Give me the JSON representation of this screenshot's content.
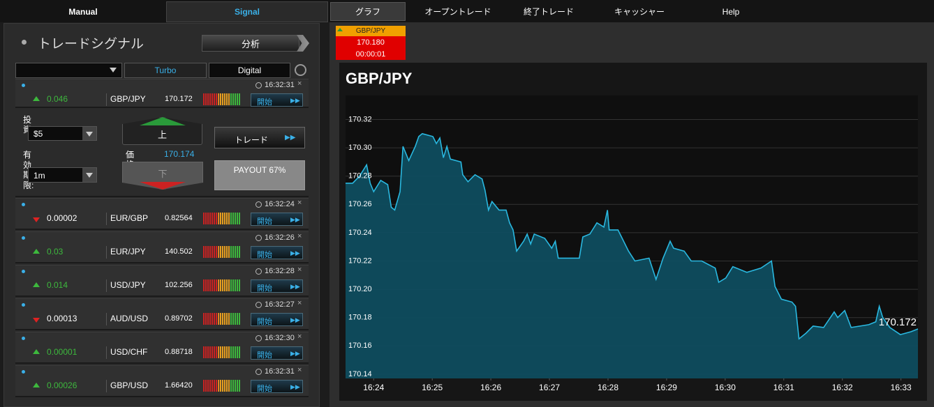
{
  "nav": {
    "left_tabs": [
      "Manual",
      "Signal"
    ],
    "right_tabs": [
      "グラフ",
      "オープントレード",
      "終了トレード",
      "キャッシャー",
      "Help"
    ]
  },
  "signal_panel": {
    "title": "トレードシグナル",
    "analyze_button": "分析",
    "filters": [
      "Turbo",
      "Digital"
    ],
    "signals": [
      {
        "time": "16:32:31",
        "direction": "up",
        "change": "0.046",
        "pair": "GBP/JPY",
        "price": "170.172",
        "button": "開始"
      },
      {
        "time": "16:32:24",
        "direction": "down",
        "change": "0.00002",
        "pair": "EUR/GBP",
        "price": "0.82564",
        "button": "開始"
      },
      {
        "time": "16:32:26",
        "direction": "up",
        "change": "0.03",
        "pair": "EUR/JPY",
        "price": "140.502",
        "button": "開始"
      },
      {
        "time": "16:32:28",
        "direction": "up",
        "change": "0.014",
        "pair": "USD/JPY",
        "price": "102.256",
        "button": "開始"
      },
      {
        "time": "16:32:27",
        "direction": "down",
        "change": "0.00013",
        "pair": "AUD/USD",
        "price": "0.89702",
        "button": "開始"
      },
      {
        "time": "16:32:30",
        "direction": "up",
        "change": "0.00001",
        "pair": "USD/CHF",
        "price": "0.88718",
        "button": "開始"
      },
      {
        "time": "16:32:31",
        "direction": "up",
        "change": "0.00026",
        "pair": "GBP/USD",
        "price": "1.66420",
        "button": "開始"
      }
    ],
    "ticket": {
      "investment_label": "投資:",
      "investment": "$5",
      "expiry_label": "有効期限:",
      "expiry": "1m",
      "call": "上",
      "put": "下",
      "price_label": "価格",
      "price": "170.174",
      "trade_button": "トレード",
      "payout": "PAYOUT 67%"
    }
  },
  "mini_ticket": {
    "pair": "GBP/JPY",
    "price": "170.180",
    "countdown": "00:00:01"
  },
  "chart_data": {
    "type": "area",
    "title": "GBP/JPY",
    "color": "#2ab8e0",
    "annotation": "170.172",
    "x": [
      983.52,
      983.64,
      983.76,
      983.88,
      983.94,
      984.0,
      984.12,
      984.24,
      984.3,
      984.36,
      984.45,
      984.5,
      984.6,
      984.71,
      984.77,
      984.83,
      985.01,
      985.07,
      985.13,
      985.19,
      985.25,
      985.31,
      985.49,
      985.52,
      985.61,
      985.73,
      985.85,
      985.9,
      985.96,
      986.02,
      986.14,
      986.26,
      986.32,
      986.38,
      986.44,
      986.56,
      986.62,
      986.68,
      986.74,
      986.92,
      987.04,
      987.1,
      987.15,
      987.51,
      987.57,
      987.69,
      987.81,
      987.93,
      987.99,
      988.02,
      988.17,
      988.35,
      988.46,
      988.7,
      988.82,
      988.94,
      989.06,
      989.12,
      989.3,
      989.42,
      989.6,
      989.83,
      989.89,
      990.01,
      990.13,
      990.37,
      990.61,
      990.79,
      990.85,
      990.96,
      991.14,
      991.2,
      991.26,
      991.38,
      991.5,
      991.68,
      991.86,
      991.92,
      992.04,
      992.15,
      992.45,
      992.57,
      992.63,
      992.69,
      992.81,
      992.99,
      993.17,
      993.29
    ],
    "values": [
      170.275,
      170.275,
      170.28,
      170.288,
      170.275,
      170.269,
      170.277,
      170.274,
      170.258,
      170.256,
      170.269,
      170.301,
      170.291,
      170.301,
      170.308,
      170.31,
      170.308,
      170.303,
      170.307,
      170.293,
      170.301,
      170.292,
      170.29,
      170.281,
      170.276,
      170.281,
      170.278,
      170.27,
      170.256,
      170.262,
      170.256,
      170.256,
      170.247,
      170.242,
      170.227,
      170.234,
      170.239,
      170.232,
      170.239,
      170.236,
      170.229,
      170.234,
      170.222,
      170.222,
      170.237,
      170.239,
      170.247,
      170.244,
      170.256,
      170.242,
      170.242,
      170.227,
      170.22,
      170.222,
      170.207,
      170.222,
      170.234,
      170.229,
      170.227,
      170.22,
      170.22,
      170.215,
      170.205,
      170.208,
      170.216,
      170.212,
      170.215,
      170.22,
      170.202,
      170.193,
      170.191,
      170.188,
      170.165,
      170.169,
      170.174,
      170.173,
      170.184,
      170.18,
      170.185,
      170.173,
      170.175,
      170.177,
      170.188,
      170.18,
      170.173,
      170.168,
      170.17,
      170.172
    ],
    "xlim": [
      983.52,
      993.29
    ],
    "ylim": [
      170.137,
      170.337
    ],
    "xticks": [
      {
        "value": 984,
        "label": "16:24"
      },
      {
        "value": 985,
        "label": "16:25"
      },
      {
        "value": 986,
        "label": "16:26"
      },
      {
        "value": 987,
        "label": "16:27"
      },
      {
        "value": 988,
        "label": "16:28"
      },
      {
        "value": 989,
        "label": "16:29"
      },
      {
        "value": 990,
        "label": "16:30"
      },
      {
        "value": 991,
        "label": "16:31"
      },
      {
        "value": 992,
        "label": "16:32"
      },
      {
        "value": 993,
        "label": "16:33"
      }
    ],
    "yticks": [
      170.14,
      170.16,
      170.18,
      {
        "value": 170.2,
        "label": "170.20"
      },
      170.22,
      170.24,
      170.26,
      170.28,
      {
        "value": 170.3,
        "label": "170.30"
      },
      170.32
    ],
    "grid": true
  }
}
